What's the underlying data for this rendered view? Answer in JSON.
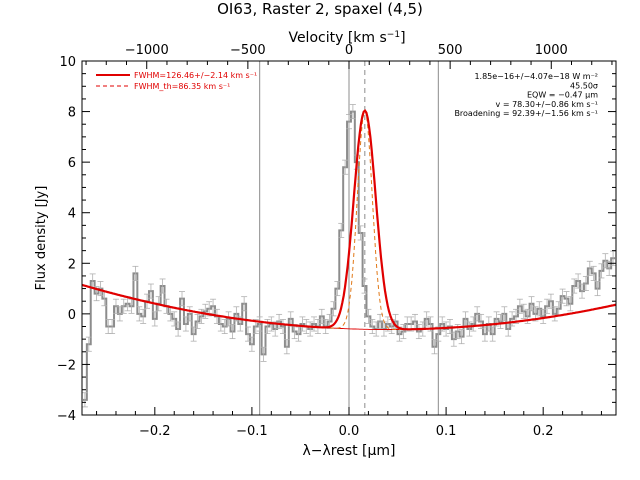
{
  "chart_data": {
    "type": "line",
    "title": "OI63, Raster 2, spaxel (4,5)",
    "xlabel": "λ−λrest [μm]",
    "ylabel": "Flux density [Jy]",
    "top_xlabel": "Velocity [km s⁻¹]",
    "xlim": [
      -0.275,
      0.275
    ],
    "ylim": [
      -4,
      10
    ],
    "top_velocity_per_um": 4800,
    "x_ticks": [
      -0.2,
      -0.1,
      0.0,
      0.1,
      0.2
    ],
    "x_tick_labels": [
      "−0.2",
      "−0.1",
      "0.0",
      "0.1",
      "0.2"
    ],
    "y_ticks": [
      -4,
      -2,
      0,
      2,
      4,
      6,
      8,
      10
    ],
    "y_tick_labels": [
      "−4",
      "−2",
      "0",
      "2",
      "4",
      "6",
      "8",
      "10"
    ],
    "top_ticks": [
      -1000,
      -500,
      0,
      500,
      1000
    ],
    "top_tick_labels": [
      "−1000",
      "−500",
      "0",
      "500",
      "1000"
    ],
    "vlines_solid": [
      -0.092,
      0.0,
      0.092
    ],
    "vline_dashed": 0.0163,
    "legend": [
      {
        "label": "FWHM=126.46+/−2.14 km s⁻¹",
        "style": "solid",
        "color": "#e00000"
      },
      {
        "label": "FWHM_th=86.35 km s⁻¹",
        "style": "dashed",
        "color": "#e00000"
      }
    ],
    "annotations": [
      "1.85e−16+/−4.07e−18 W m⁻²",
      "45.50σ",
      "EQW = −0.47 μm",
      "v = 78.30+/−0.86 km s⁻¹",
      "Broadening = 92.39+/−1.56 km s⁻¹"
    ],
    "colors": {
      "data": "#8c8c8c",
      "fit": "#e00000",
      "thermal": "#e07818",
      "vlines": "#8c8c8c"
    },
    "model": {
      "center": 0.0163,
      "amplitude": 8.65,
      "sigma_fit": 0.0112,
      "sigma_thermal": 0.0077,
      "baseline_min": -0.62,
      "baseline_center": 0.04,
      "baseline_curvature": 17.8
    },
    "series": [
      {
        "style": "histogram-errorbars",
        "color": "#8c8c8c",
        "error": 0.28,
        "x": [
          -0.272,
          -0.268,
          -0.264,
          -0.26,
          -0.256,
          -0.252,
          -0.248,
          -0.244,
          -0.24,
          -0.236,
          -0.232,
          -0.228,
          -0.224,
          -0.22,
          -0.216,
          -0.212,
          -0.208,
          -0.204,
          -0.2,
          -0.196,
          -0.192,
          -0.188,
          -0.184,
          -0.18,
          -0.176,
          -0.172,
          -0.168,
          -0.164,
          -0.16,
          -0.156,
          -0.152,
          -0.148,
          -0.144,
          -0.14,
          -0.136,
          -0.132,
          -0.128,
          -0.124,
          -0.12,
          -0.116,
          -0.112,
          -0.108,
          -0.104,
          -0.1,
          -0.096,
          -0.092,
          -0.088,
          -0.084,
          -0.08,
          -0.076,
          -0.072,
          -0.068,
          -0.064,
          -0.06,
          -0.056,
          -0.052,
          -0.048,
          -0.044,
          -0.04,
          -0.036,
          -0.032,
          -0.028,
          -0.024,
          -0.02,
          -0.016,
          -0.012,
          -0.008,
          -0.004,
          0.0,
          0.004,
          0.008,
          0.012,
          0.016,
          0.02,
          0.024,
          0.028,
          0.032,
          0.036,
          0.04,
          0.044,
          0.048,
          0.052,
          0.056,
          0.06,
          0.064,
          0.068,
          0.072,
          0.076,
          0.08,
          0.084,
          0.088,
          0.092,
          0.096,
          0.1,
          0.104,
          0.108,
          0.112,
          0.116,
          0.12,
          0.124,
          0.128,
          0.132,
          0.136,
          0.14,
          0.144,
          0.148,
          0.152,
          0.156,
          0.16,
          0.164,
          0.168,
          0.172,
          0.176,
          0.18,
          0.184,
          0.188,
          0.192,
          0.196,
          0.2,
          0.204,
          0.208,
          0.212,
          0.216,
          0.22,
          0.224,
          0.228,
          0.232,
          0.236,
          0.24,
          0.244,
          0.248,
          0.252,
          0.256,
          0.26,
          0.264,
          0.268,
          0.272
        ],
        "y": [
          -3.4,
          -1.2,
          1.3,
          0.8,
          1.0,
          0.6,
          -0.5,
          -0.5,
          0.3,
          0.0,
          0.3,
          0.4,
          0.3,
          1.6,
          0.0,
          -0.1,
          0.5,
          0.9,
          -0.2,
          0.4,
          1.1,
          0.3,
          0.0,
          -0.2,
          -0.6,
          0.6,
          -0.4,
          0.0,
          -0.8,
          -0.3,
          -0.1,
          0.1,
          0.2,
          0.3,
          -0.1,
          -0.4,
          -0.5,
          -0.2,
          -0.7,
          0.0,
          -0.4,
          0.4,
          -0.8,
          -1.2,
          -0.5,
          -0.4,
          -1.6,
          -0.5,
          -0.4,
          -0.6,
          -0.3,
          -0.5,
          -1.3,
          -0.2,
          -0.7,
          -0.8,
          -0.4,
          -0.5,
          -0.6,
          -0.4,
          -0.5,
          -0.1,
          -0.5,
          -0.3,
          0.2,
          1.0,
          3.3,
          5.8,
          7.6,
          8.0,
          6.0,
          3.2,
          1.1,
          -0.1,
          -0.5,
          -0.6,
          -0.3,
          -0.6,
          -0.4,
          -0.5,
          -0.3,
          -0.8,
          -0.7,
          -0.4,
          -0.4,
          -0.3,
          -0.7,
          -0.6,
          -0.2,
          -0.4,
          -1.3,
          -0.8,
          -0.4,
          -0.6,
          -0.5,
          -1.0,
          -0.7,
          -0.9,
          -0.2,
          -0.6,
          -0.4,
          0.0,
          -0.3,
          -0.8,
          -0.4,
          -0.8,
          -0.2,
          -0.3,
          0.0,
          -0.6,
          -0.2,
          -0.1,
          0.3,
          0.1,
          -0.1,
          0.4,
          0.0,
          0.2,
          -0.1,
          0.3,
          0.5,
          0.0,
          0.2,
          0.7,
          0.6,
          0.4,
          1.1,
          1.3,
          0.9,
          1.2,
          1.8,
          1.6,
          1.0,
          1.7,
          2.1,
          1.8,
          2.2
        ]
      }
    ]
  }
}
